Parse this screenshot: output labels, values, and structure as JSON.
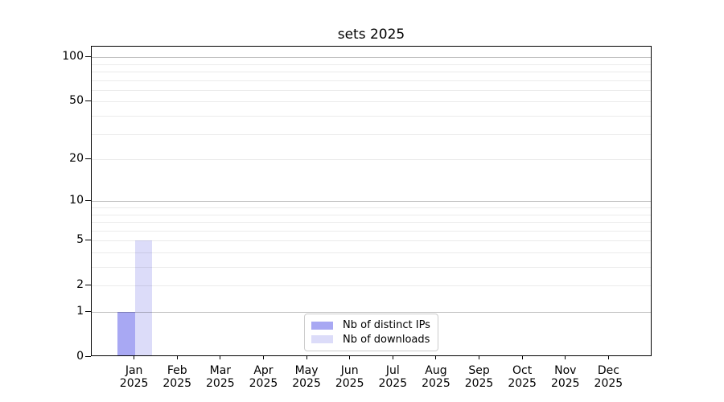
{
  "chart_data": {
    "type": "bar",
    "title": "sets 2025",
    "categories": [
      "Jan",
      "Feb",
      "Mar",
      "Apr",
      "May",
      "Jun",
      "Jul",
      "Aug",
      "Sep",
      "Oct",
      "Nov",
      "Dec"
    ],
    "x_year_label": "2025",
    "series": [
      {
        "name": "Nb of distinct IPs",
        "color": "#a8a8f3",
        "values": [
          1,
          0,
          0,
          0,
          0,
          0,
          0,
          0,
          0,
          0,
          0,
          0
        ]
      },
      {
        "name": "Nb of downloads",
        "color": "#dcdcf9",
        "values": [
          5,
          0,
          0,
          0,
          0,
          0,
          0,
          0,
          0,
          0,
          0,
          0
        ]
      }
    ],
    "yscale": "log1p",
    "ylim": [
      0,
      118
    ],
    "y_tick_labels": [
      0,
      1,
      2,
      5,
      10,
      20,
      50,
      100
    ],
    "y_decade_gridlines": [
      1,
      10,
      100
    ],
    "y_minor_gridlines": [
      2,
      3,
      4,
      5,
      6,
      7,
      8,
      9,
      20,
      30,
      40,
      50,
      60,
      70,
      80,
      90
    ],
    "grid": true,
    "legend_position": "lower center",
    "colors": {
      "axis": "#000000",
      "decade_grid": "rgba(0,0,0,0.24)",
      "minor_grid": "rgba(0,0,0,0.08)",
      "legend_border": "#cccccc",
      "background": "#ffffff"
    }
  }
}
